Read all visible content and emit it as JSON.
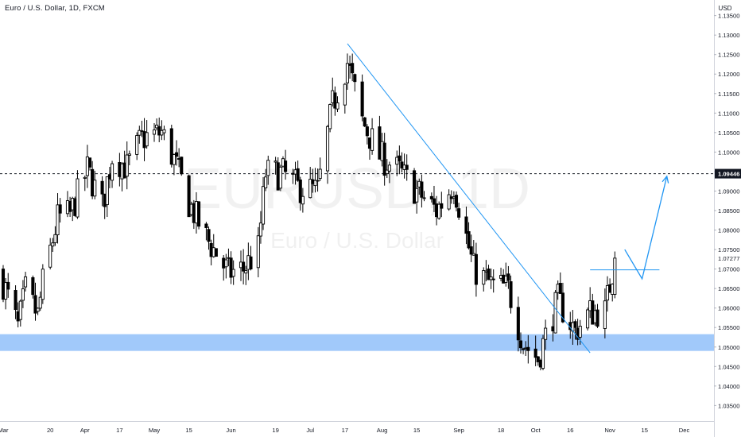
{
  "header": {
    "title": "Euro / U.S. Dollar, 1D, FXCM"
  },
  "watermark": {
    "symbol": "EURUSD, 1D",
    "name": "Euro / U.S. Dollar"
  },
  "colors": {
    "candle_up_body": "#ffffff",
    "candle_down_body": "#000000",
    "wick": "#000000",
    "support_zone": "#90bff9",
    "trendline": "#2196f3",
    "projection": "#2196f3",
    "level_line": "#131722",
    "price_marker_bg": "#131722"
  },
  "chart_data": {
    "type": "candlestick",
    "title": "Euro / U.S. Dollar, 1D, FXCM",
    "currency_label": "USD",
    "y_axis": {
      "ylim": [
        1.031,
        1.139
      ],
      "ticks": [
        "1.03500",
        "1.04000",
        "1.04500",
        "1.05000",
        "1.05500",
        "1.06000",
        "1.06500",
        "1.07000",
        "1.07500",
        "1.08000",
        "1.08500",
        "1.09000",
        "1.09500",
        "1.10000",
        "1.10500",
        "1.11000",
        "1.11500",
        "1.12000",
        "1.12500",
        "1.13000",
        "1.13500"
      ],
      "labels_extra": [
        "1.07277"
      ],
      "highlight_label": "1.09446"
    },
    "x_axis": {
      "start": "2023-03-01",
      "end": "2023-12-05",
      "ticks": [
        {
          "date": "2023-03-01",
          "label": "Mar"
        },
        {
          "date": "2023-03-20",
          "label": "20"
        },
        {
          "date": "2023-04-03",
          "label": "Apr"
        },
        {
          "date": "2023-04-17",
          "label": "17"
        },
        {
          "date": "2023-05-01",
          "label": "May"
        },
        {
          "date": "2023-05-15",
          "label": "15"
        },
        {
          "date": "2023-06-01",
          "label": "Jun"
        },
        {
          "date": "2023-06-19",
          "label": "19"
        },
        {
          "date": "2023-07-03",
          "label": "Jul"
        },
        {
          "date": "2023-07-17",
          "label": "17"
        },
        {
          "date": "2023-08-01",
          "label": "Aug"
        },
        {
          "date": "2023-08-15",
          "label": "15"
        },
        {
          "date": "2023-09-01",
          "label": "Sep"
        },
        {
          "date": "2023-09-18",
          "label": "18"
        },
        {
          "date": "2023-10-02",
          "label": "Oct"
        },
        {
          "date": "2023-10-16",
          "label": "16"
        },
        {
          "date": "2023-11-01",
          "label": "Nov"
        },
        {
          "date": "2023-11-15",
          "label": "15"
        },
        {
          "date": "2023-12-01",
          "label": "Dec"
        }
      ]
    },
    "closes": [
      {
        "date": "2023-03-01",
        "close": 1.0665
      },
      {
        "date": "2023-03-07",
        "close": 1.055
      },
      {
        "date": "2023-03-10",
        "close": 1.0645
      },
      {
        "date": "2023-03-15",
        "close": 1.058
      },
      {
        "date": "2023-03-17",
        "close": 1.0665
      },
      {
        "date": "2023-03-23",
        "close": 1.083
      },
      {
        "date": "2023-03-28",
        "close": 1.084
      },
      {
        "date": "2023-04-04",
        "close": 1.0955
      },
      {
        "date": "2023-04-10",
        "close": 1.086
      },
      {
        "date": "2023-04-14",
        "close": 1.099
      },
      {
        "date": "2023-04-20",
        "close": 1.096
      },
      {
        "date": "2023-04-26",
        "close": 1.1035
      },
      {
        "date": "2023-05-04",
        "close": 1.105
      },
      {
        "date": "2023-05-09",
        "close": 1.098
      },
      {
        "date": "2023-05-15",
        "close": 1.087
      },
      {
        "date": "2023-05-22",
        "close": 1.078
      },
      {
        "date": "2023-05-31",
        "close": 1.069
      },
      {
        "date": "2023-06-06",
        "close": 1.07
      },
      {
        "date": "2023-06-12",
        "close": 1.075
      },
      {
        "date": "2023-06-15",
        "close": 1.0945
      },
      {
        "date": "2023-06-22",
        "close": 1.0945
      },
      {
        "date": "2023-06-28",
        "close": 1.091
      },
      {
        "date": "2023-07-06",
        "close": 1.09
      },
      {
        "date": "2023-07-12",
        "close": 1.112
      },
      {
        "date": "2023-07-18",
        "close": 1.123
      },
      {
        "date": "2023-07-24",
        "close": 1.108
      },
      {
        "date": "2023-07-31",
        "close": 1.099
      },
      {
        "date": "2023-08-08",
        "close": 1.095
      },
      {
        "date": "2023-08-15",
        "close": 1.09
      },
      {
        "date": "2023-08-23",
        "close": 1.085
      },
      {
        "date": "2023-08-30",
        "close": 1.092
      },
      {
        "date": "2023-09-07",
        "close": 1.07
      },
      {
        "date": "2023-09-14",
        "close": 1.066
      },
      {
        "date": "2023-09-21",
        "close": 1.065
      },
      {
        "date": "2023-09-27",
        "close": 1.051
      },
      {
        "date": "2023-10-03",
        "close": 1.047
      },
      {
        "date": "2023-10-11",
        "close": 1.062
      },
      {
        "date": "2023-10-18",
        "close": 1.054
      },
      {
        "date": "2023-10-24",
        "close": 1.059
      },
      {
        "date": "2023-10-30",
        "close": 1.059
      },
      {
        "date": "2023-11-03",
        "close": 1.0728
      }
    ],
    "annotations": {
      "support_zone": {
        "low": 1.049,
        "high": 1.0533,
        "label": ""
      },
      "horizontal_level": {
        "price": 1.09446,
        "style": "dashed"
      },
      "trendline": {
        "from": {
          "date": "2023-07-18",
          "price": 1.1278
        },
        "to": {
          "date": "2023-10-24",
          "price": 1.0485
        }
      },
      "resistance_segment": {
        "from": "2023-10-24",
        "to": "2023-11-21",
        "price": 1.0698
      },
      "projection_path": [
        {
          "date": "2023-11-07",
          "price": 1.075
        },
        {
          "date": "2023-11-14",
          "price": 1.0675
        },
        {
          "date": "2023-11-24",
          "price": 1.0938
        }
      ]
    }
  }
}
